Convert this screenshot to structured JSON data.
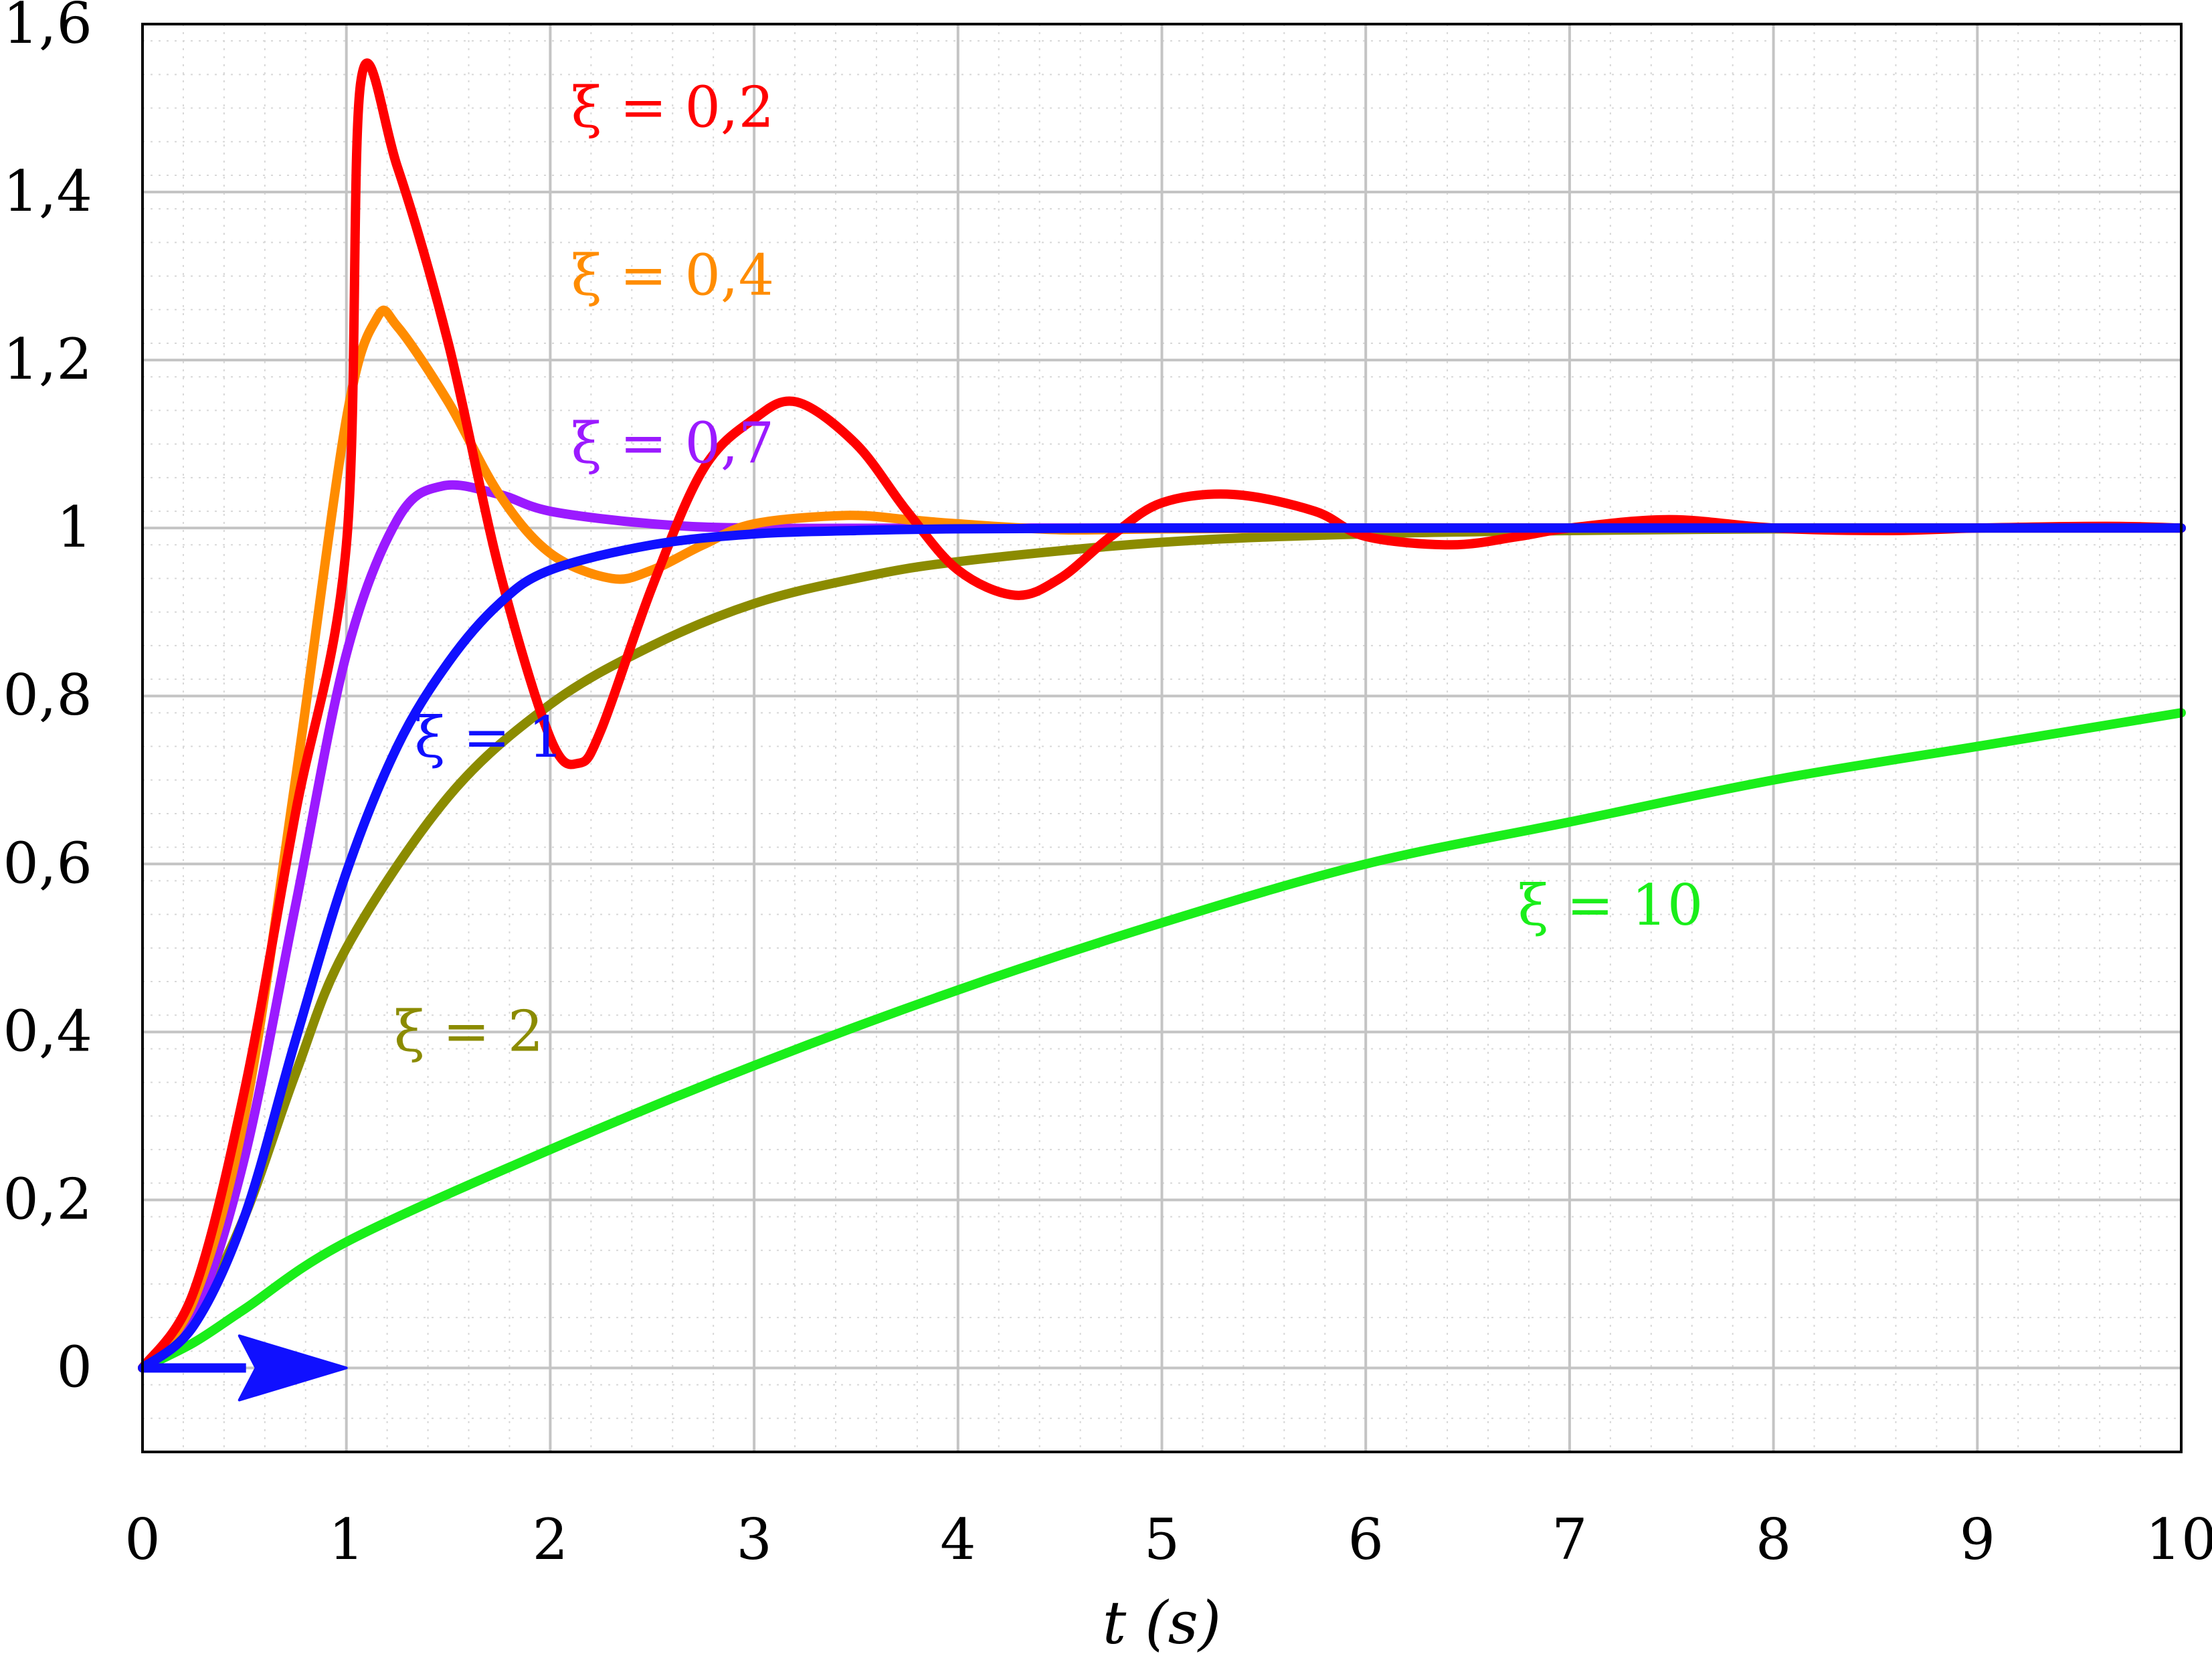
{
  "chart_data": {
    "type": "line",
    "title": "",
    "xlabel": "t (s)",
    "ylabel": "",
    "xlim": [
      0,
      10
    ],
    "ylim": [
      -0.1,
      1.6
    ],
    "x_ticks": [
      0,
      1,
      2,
      3,
      4,
      5,
      6,
      7,
      8,
      9,
      10
    ],
    "x_tick_labels": [
      "0",
      "1",
      "2",
      "3",
      "4",
      "5",
      "6",
      "7",
      "8",
      "9",
      "10"
    ],
    "y_ticks": [
      0,
      0.2,
      0.4,
      0.6,
      0.8,
      1,
      1.2,
      1.4,
      1.6
    ],
    "y_tick_labels": [
      "0",
      "0,2",
      "0,4",
      "0,6",
      "0,8",
      "1",
      "1,2",
      "1,4",
      "1,6"
    ],
    "grid": true,
    "minor_grid": true,
    "legend": "none",
    "arrow": {
      "x_start": 0,
      "x_end": 1,
      "y": 0,
      "color": "#1010ff"
    },
    "series": [
      {
        "name": "ξ = 0,2",
        "color": "#ff0000",
        "x": [
          0,
          0.25,
          0.5,
          0.75,
          1.0,
          1.07,
          1.25,
          1.5,
          1.75,
          2.0,
          2.14,
          2.25,
          2.5,
          2.75,
          3.0,
          3.21,
          3.5,
          3.75,
          4.0,
          4.28,
          4.5,
          4.75,
          5.0,
          5.35,
          5.75,
          6.0,
          6.42,
          6.75,
          7.0,
          7.49,
          8.0,
          8.56,
          9.0,
          9.63,
          10.0
        ],
        "y": [
          0,
          0.09,
          0.33,
          0.66,
          0.98,
          1.53,
          1.43,
          1.22,
          0.95,
          0.75,
          0.72,
          0.76,
          0.93,
          1.07,
          1.13,
          1.15,
          1.1,
          1.02,
          0.95,
          0.92,
          0.94,
          0.99,
          1.03,
          1.04,
          1.02,
          0.99,
          0.98,
          0.99,
          1.0,
          1.01,
          1.0,
          0.997,
          1.0,
          1.002,
          1.0
        ]
      },
      {
        "name": "ξ = 0,4",
        "color": "#ff8c00",
        "x": [
          0,
          0.25,
          0.5,
          0.75,
          1.0,
          1.15,
          1.25,
          1.5,
          1.75,
          2.0,
          2.3,
          2.5,
          2.75,
          3.0,
          3.45,
          3.75,
          4.0,
          4.5,
          5.0,
          6.0,
          7.0,
          8.0,
          10.0
        ],
        "y": [
          0,
          0.08,
          0.3,
          0.7,
          1.13,
          1.25,
          1.24,
          1.15,
          1.04,
          0.97,
          0.94,
          0.95,
          0.98,
          1.005,
          1.015,
          1.01,
          1.005,
          0.998,
          0.999,
          1.0,
          1.0,
          1.0,
          1.0
        ]
      },
      {
        "name": "ξ = 0,7",
        "color": "#9b1aff",
        "x": [
          0,
          0.25,
          0.5,
          0.75,
          1.0,
          1.25,
          1.47,
          1.75,
          2.0,
          2.5,
          3.0,
          4.0,
          5.0,
          6.0,
          8.0,
          10.0
        ],
        "y": [
          0,
          0.06,
          0.25,
          0.55,
          0.85,
          1.01,
          1.05,
          1.04,
          1.02,
          1.005,
          1.0,
          1.0,
          1.0,
          1.0,
          1.0,
          1.0
        ]
      },
      {
        "name": "ξ = 1",
        "color": "#1010ff",
        "x": [
          0,
          0.25,
          0.5,
          0.75,
          1.0,
          1.25,
          1.5,
          1.75,
          2.0,
          2.5,
          3.0,
          3.5,
          4.0,
          5.0,
          6.0,
          7.0,
          8.0,
          10.0
        ],
        "y": [
          0,
          0.05,
          0.18,
          0.39,
          0.59,
          0.74,
          0.84,
          0.91,
          0.95,
          0.98,
          0.993,
          0.997,
          0.999,
          1.0,
          1.0,
          1.0,
          1.0,
          1.0
        ]
      },
      {
        "name": "ξ = 2",
        "color": "#8b8b00",
        "x": [
          0,
          0.25,
          0.5,
          0.75,
          1.0,
          1.5,
          2.0,
          2.5,
          3.0,
          3.5,
          4.0,
          5.0,
          6.0,
          7.0,
          8.0,
          9.0,
          10.0
        ],
        "y": [
          0,
          0.06,
          0.18,
          0.35,
          0.5,
          0.68,
          0.79,
          0.86,
          0.91,
          0.94,
          0.96,
          0.983,
          0.993,
          0.997,
          0.999,
          1.0,
          1.0
        ]
      },
      {
        "name": "ξ = 10",
        "color": "#1aee1a",
        "x": [
          0,
          0.25,
          0.5,
          1.0,
          2.0,
          3.0,
          4.0,
          5.0,
          6.0,
          7.0,
          8.0,
          9.0,
          10.0
        ],
        "y": [
          0,
          0.03,
          0.07,
          0.15,
          0.26,
          0.36,
          0.45,
          0.53,
          0.6,
          0.65,
          0.7,
          0.74,
          0.78
        ]
      }
    ],
    "annotations": [
      {
        "text": "ξ = 0,2",
        "x": 2.6,
        "y": 1.5,
        "color": "#ff0000"
      },
      {
        "text": "ξ = 0,4",
        "x": 2.6,
        "y": 1.3,
        "color": "#ff8c00"
      },
      {
        "text": "ξ = 0,7",
        "x": 2.6,
        "y": 1.1,
        "color": "#9b1aff"
      },
      {
        "text": "ξ = 1",
        "x": 1.7,
        "y": 0.75,
        "color": "#1010ff"
      },
      {
        "text": "ξ = 2",
        "x": 1.6,
        "y": 0.4,
        "color": "#8b8b00"
      },
      {
        "text": "ξ = 10",
        "x": 7.2,
        "y": 0.55,
        "color": "#1aee1a"
      }
    ]
  }
}
